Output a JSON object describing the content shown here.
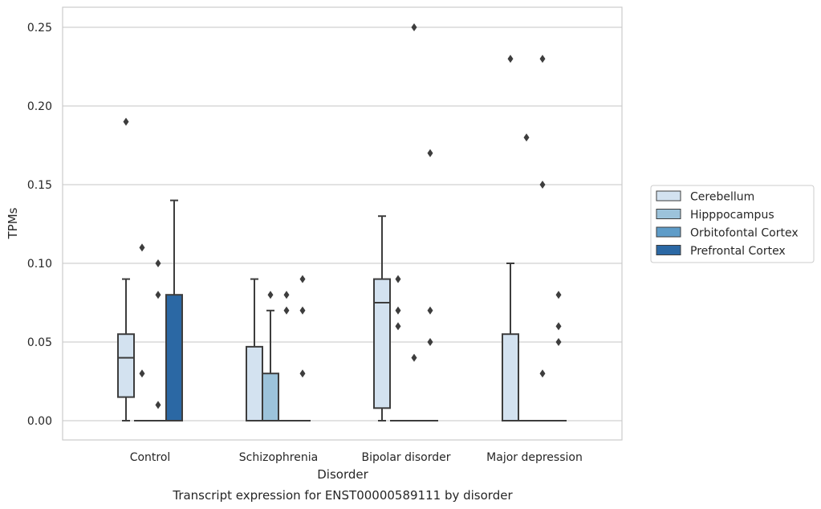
{
  "chart_data": {
    "type": "box",
    "xlabel": "Disorder",
    "ylabel": "TPMs",
    "caption": "Transcript expression for ENST00000589111 by disorder",
    "ylim": [
      -0.012,
      0.263
    ],
    "yticks": [
      "0.00",
      "0.05",
      "0.10",
      "0.15",
      "0.20",
      "0.25"
    ],
    "ytick_values": [
      0.0,
      0.05,
      0.1,
      0.15,
      0.2,
      0.25
    ],
    "grid": "horizontal",
    "legend_position": "right",
    "categories": [
      "Control",
      "Schizophrenia",
      "Bipolar disorder",
      "Major depression"
    ],
    "series": [
      {
        "name": "Cerebellum",
        "color": "#d3e2f0",
        "boxes": [
          {
            "q1": 0.015,
            "median": 0.04,
            "q3": 0.055,
            "whisker_low": 0.0,
            "whisker_high": 0.09,
            "outliers": [
              0.19
            ]
          },
          {
            "q1": 0.0,
            "median": 0.0,
            "q3": 0.047,
            "whisker_low": 0.0,
            "whisker_high": 0.09,
            "outliers": []
          },
          {
            "q1": 0.008,
            "median": 0.075,
            "q3": 0.09,
            "whisker_low": 0.0,
            "whisker_high": 0.13,
            "outliers": []
          },
          {
            "q1": 0.0,
            "median": 0.0,
            "q3": 0.055,
            "whisker_low": 0.0,
            "whisker_high": 0.1,
            "outliers": [
              0.23
            ]
          }
        ]
      },
      {
        "name": "Hipppocampus",
        "color": "#9cc3db",
        "boxes": [
          {
            "q1": 0.0,
            "median": 0.0,
            "q3": 0.0,
            "whisker_low": 0.0,
            "whisker_high": 0.0,
            "outliers": [
              0.03,
              0.11
            ]
          },
          {
            "q1": 0.0,
            "median": 0.0,
            "q3": 0.03,
            "whisker_low": 0.0,
            "whisker_high": 0.07,
            "outliers": [
              0.08
            ]
          },
          {
            "q1": 0.0,
            "median": 0.0,
            "q3": 0.0,
            "whisker_low": 0.0,
            "whisker_high": 0.0,
            "outliers": [
              0.06,
              0.07,
              0.09
            ]
          },
          {
            "q1": 0.0,
            "median": 0.0,
            "q3": 0.0,
            "whisker_low": 0.0,
            "whisker_high": 0.0,
            "outliers": [
              0.18
            ]
          }
        ]
      },
      {
        "name": "Orbitofontal Cortex",
        "color": "#5e9cc8",
        "boxes": [
          {
            "q1": 0.0,
            "median": 0.0,
            "q3": 0.0,
            "whisker_low": 0.0,
            "whisker_high": 0.0,
            "outliers": [
              0.01,
              0.08,
              0.1
            ]
          },
          {
            "q1": 0.0,
            "median": 0.0,
            "q3": 0.0,
            "whisker_low": 0.0,
            "whisker_high": 0.0,
            "outliers": [
              0.07,
              0.08
            ]
          },
          {
            "q1": 0.0,
            "median": 0.0,
            "q3": 0.0,
            "whisker_low": 0.0,
            "whisker_high": 0.0,
            "outliers": [
              0.04,
              0.25
            ]
          },
          {
            "q1": 0.0,
            "median": 0.0,
            "q3": 0.0,
            "whisker_low": 0.0,
            "whisker_high": 0.0,
            "outliers": [
              0.03,
              0.15,
              0.23
            ]
          }
        ]
      },
      {
        "name": "Prefrontal Cortex",
        "color": "#2b68a4",
        "boxes": [
          {
            "q1": 0.0,
            "median": 0.0,
            "q3": 0.08,
            "whisker_low": 0.0,
            "whisker_high": 0.14,
            "outliers": []
          },
          {
            "q1": 0.0,
            "median": 0.0,
            "q3": 0.0,
            "whisker_low": 0.0,
            "whisker_high": 0.0,
            "outliers": [
              0.03,
              0.07,
              0.09
            ]
          },
          {
            "q1": 0.0,
            "median": 0.0,
            "q3": 0.0,
            "whisker_low": 0.0,
            "whisker_high": 0.0,
            "outliers": [
              0.05,
              0.07,
              0.17
            ]
          },
          {
            "q1": 0.0,
            "median": 0.0,
            "q3": 0.0,
            "whisker_low": 0.0,
            "whisker_high": 0.0,
            "outliers": [
              0.05,
              0.06,
              0.08
            ]
          }
        ]
      }
    ]
  }
}
